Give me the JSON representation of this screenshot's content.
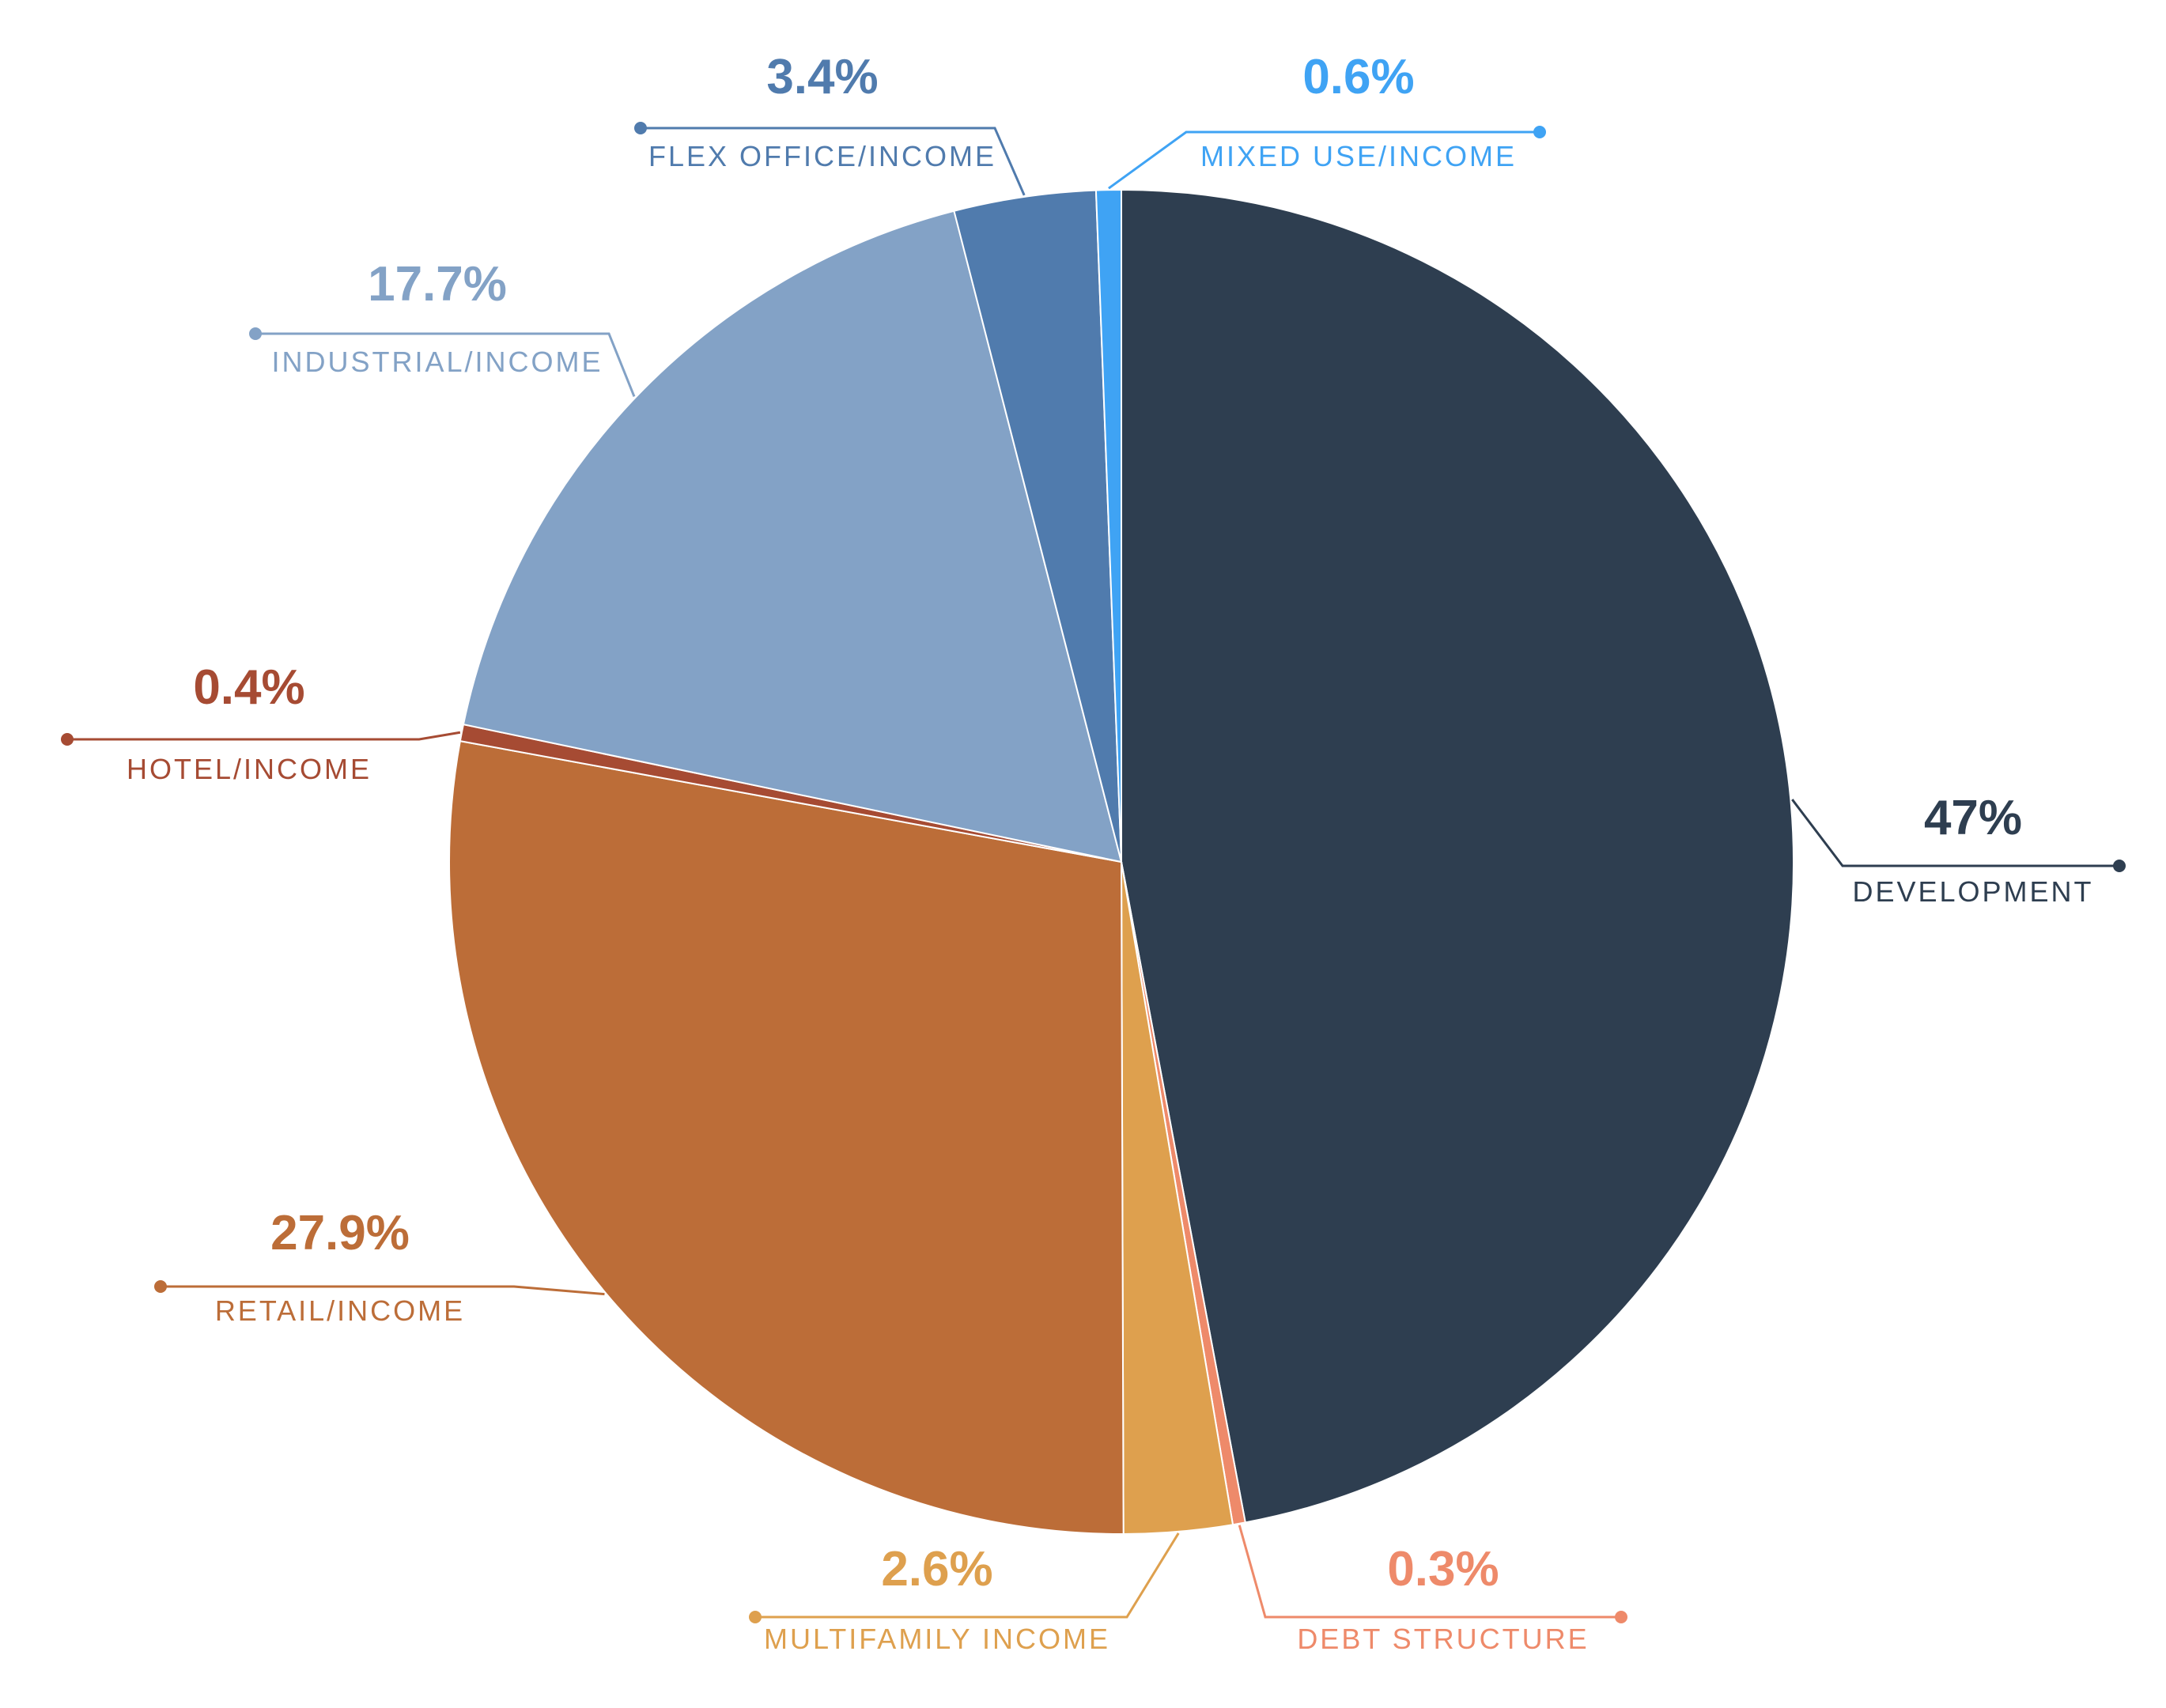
{
  "chart_data": {
    "type": "pie",
    "title": "",
    "series": [
      {
        "name": "DEVELOPMENT",
        "value": 47,
        "label": "47%",
        "color": "#2E3E50"
      },
      {
        "name": "DEBT STRUCTURE",
        "value": 0.3,
        "label": "0.3%",
        "color": "#EE8A6A"
      },
      {
        "name": "MULTIFAMILY INCOME",
        "value": 2.6,
        "label": "2.6%",
        "color": "#DEA04E"
      },
      {
        "name": "RETAIL/INCOME",
        "value": 27.9,
        "label": "27.9%",
        "color": "#BC6D38"
      },
      {
        "name": "HOTEL/INCOME",
        "value": 0.4,
        "label": "0.4%",
        "color": "#A64B33"
      },
      {
        "name": "INDUSTRIAL/INCOME",
        "value": 17.7,
        "label": "17.7%",
        "color": "#83A2C6"
      },
      {
        "name": "FLEX OFFICE/INCOME",
        "value": 3.4,
        "label": "3.4%",
        "color": "#507BAD"
      },
      {
        "name": "MIXED USE/INCOME",
        "value": 0.6,
        "label": "0.6%",
        "color": "#3FA3F4"
      }
    ],
    "legend": "callouts"
  }
}
